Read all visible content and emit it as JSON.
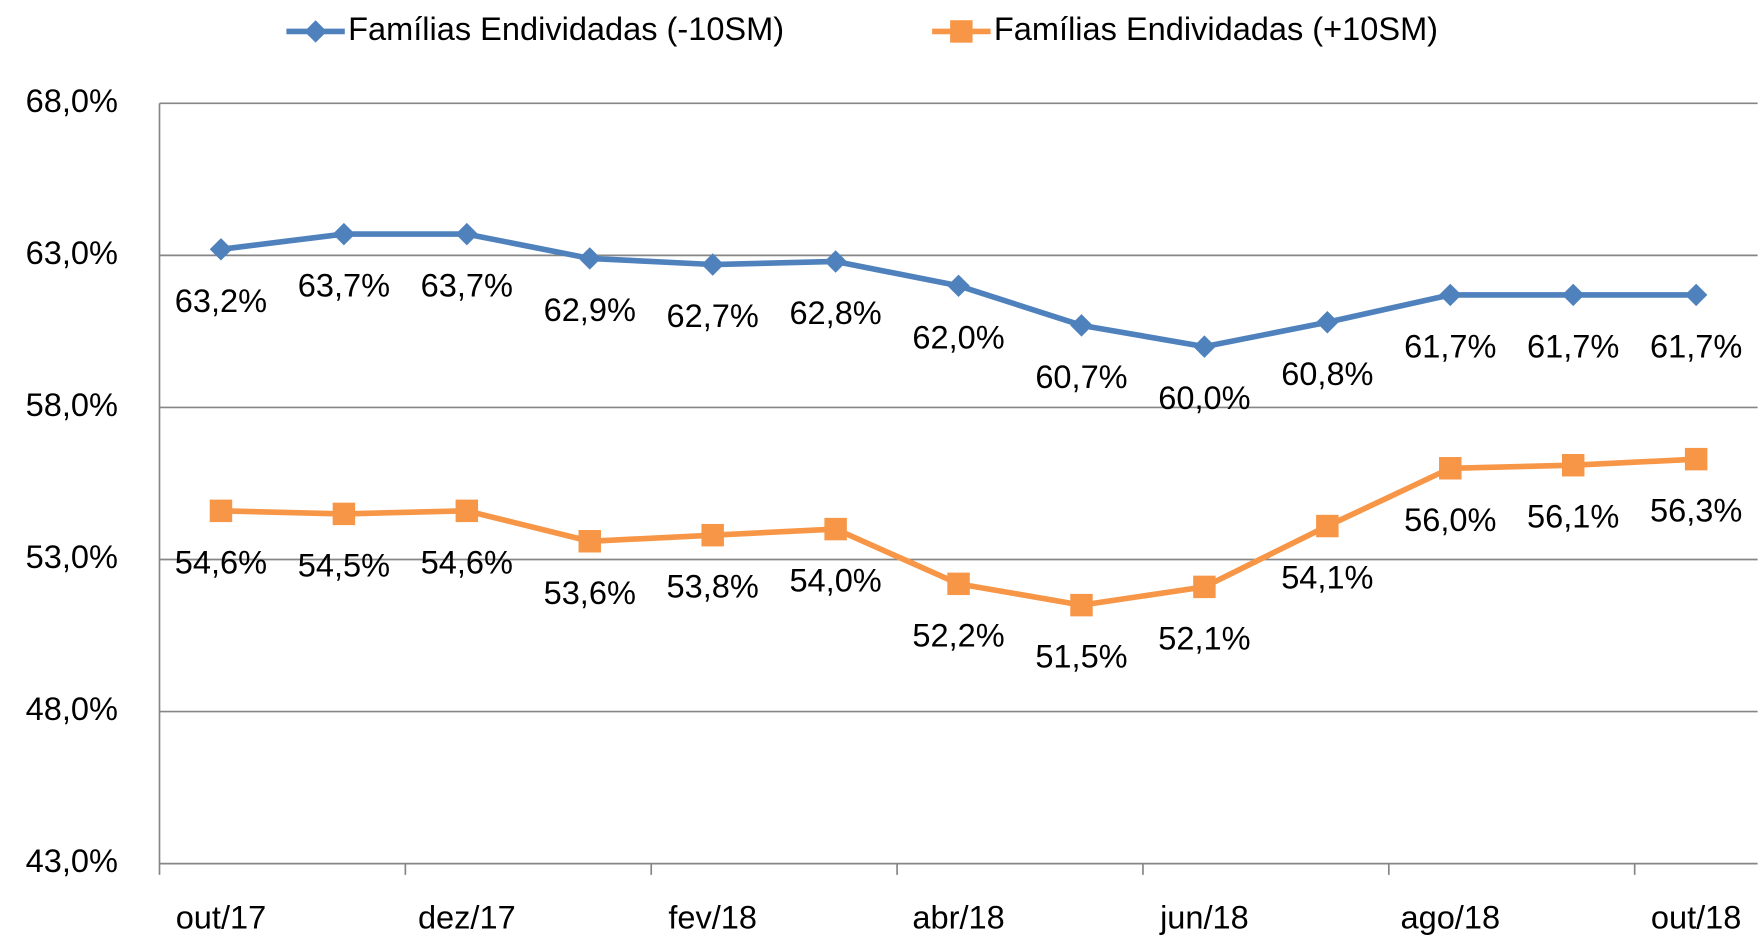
{
  "chart_data": {
    "type": "line",
    "categories": [
      "out/17",
      null,
      "dez/17",
      null,
      "fev/18",
      null,
      "abr/18",
      null,
      "jun/18",
      null,
      "ago/18",
      null,
      "out/18"
    ],
    "series": [
      {
        "name": "Famílias Endividadas (-10SM)",
        "color": "#4f81bd",
        "marker": "diamond",
        "values": [
          63.2,
          63.7,
          63.7,
          62.9,
          62.7,
          62.8,
          62.0,
          60.7,
          60.0,
          60.8,
          61.7,
          61.7,
          61.7
        ],
        "value_labels": [
          "63,2%",
          "63,7%",
          "63,7%",
          "62,9%",
          "62,7%",
          "62,8%",
          "62,0%",
          "60,7%",
          "60,0%",
          "60,8%",
          "61,7%",
          "61,7%",
          "61,7%"
        ]
      },
      {
        "name": "Famílias Endividadas (+10SM)",
        "color": "#f79646",
        "marker": "square",
        "values": [
          54.6,
          54.5,
          54.6,
          53.6,
          53.8,
          54.0,
          52.2,
          51.5,
          52.1,
          54.1,
          56.0,
          56.1,
          56.3
        ],
        "value_labels": [
          "54,6%",
          "54,5%",
          "54,6%",
          "53,6%",
          "53,8%",
          "54,0%",
          "52,2%",
          "51,5%",
          "52,1%",
          "54,1%",
          "56,0%",
          "56,1%",
          "56,3%"
        ]
      }
    ],
    "ylim": [
      43,
      68
    ],
    "yticks": [
      {
        "value": 43,
        "label": "43,0%"
      },
      {
        "value": 48,
        "label": "48,0%"
      },
      {
        "value": 53,
        "label": "53,0%"
      },
      {
        "value": 58,
        "label": "58,0%"
      },
      {
        "value": 63,
        "label": "63,0%"
      },
      {
        "value": 68,
        "label": "68,0%"
      }
    ],
    "grid": true,
    "legend": "top"
  }
}
